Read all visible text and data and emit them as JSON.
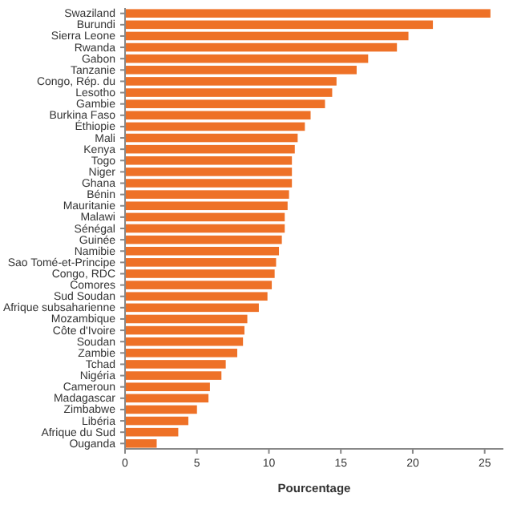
{
  "chart_data": {
    "type": "bar",
    "orientation": "horizontal",
    "xlabel": "Pourcentage",
    "categories": [
      "Swaziland",
      "Burundi",
      "Sierra Leone",
      "Rwanda",
      "Gabon",
      "Tanzanie",
      "Congo, Rép. du",
      "Lesotho",
      "Gambie",
      "Burkina Faso",
      "Éthiopie",
      "Mali",
      "Kenya",
      "Togo",
      "Niger",
      "Ghana",
      "Bénin",
      "Mauritanie",
      "Malawi",
      "Sénégal",
      "Guinée",
      "Namibie",
      "Sao Tomé-et-Principe",
      "Congo, RDC",
      "Comores",
      "Sud Soudan",
      "Afrique subsaharienne",
      "Mozambique",
      "Côte d'Ivoire",
      "Soudan",
      "Zambie",
      "Tchad",
      "Nigéria",
      "Cameroun",
      "Madagascar",
      "Zimbabwe",
      "Libéria",
      "Afrique du Sud",
      "Ouganda"
    ],
    "values": [
      25.4,
      21.4,
      19.7,
      18.9,
      16.9,
      16.1,
      14.7,
      14.4,
      13.9,
      12.9,
      12.5,
      12.0,
      11.8,
      11.6,
      11.6,
      11.6,
      11.4,
      11.3,
      11.1,
      11.1,
      10.9,
      10.7,
      10.5,
      10.4,
      10.2,
      9.9,
      9.3,
      8.5,
      8.3,
      8.2,
      7.8,
      7.0,
      6.7,
      5.9,
      5.8,
      5.0,
      4.4,
      3.7,
      2.2
    ],
    "color": "#ee7127",
    "xlim": [
      0,
      26.3
    ],
    "xticks": [
      0,
      5,
      10,
      15,
      20,
      25
    ],
    "grid": false
  }
}
